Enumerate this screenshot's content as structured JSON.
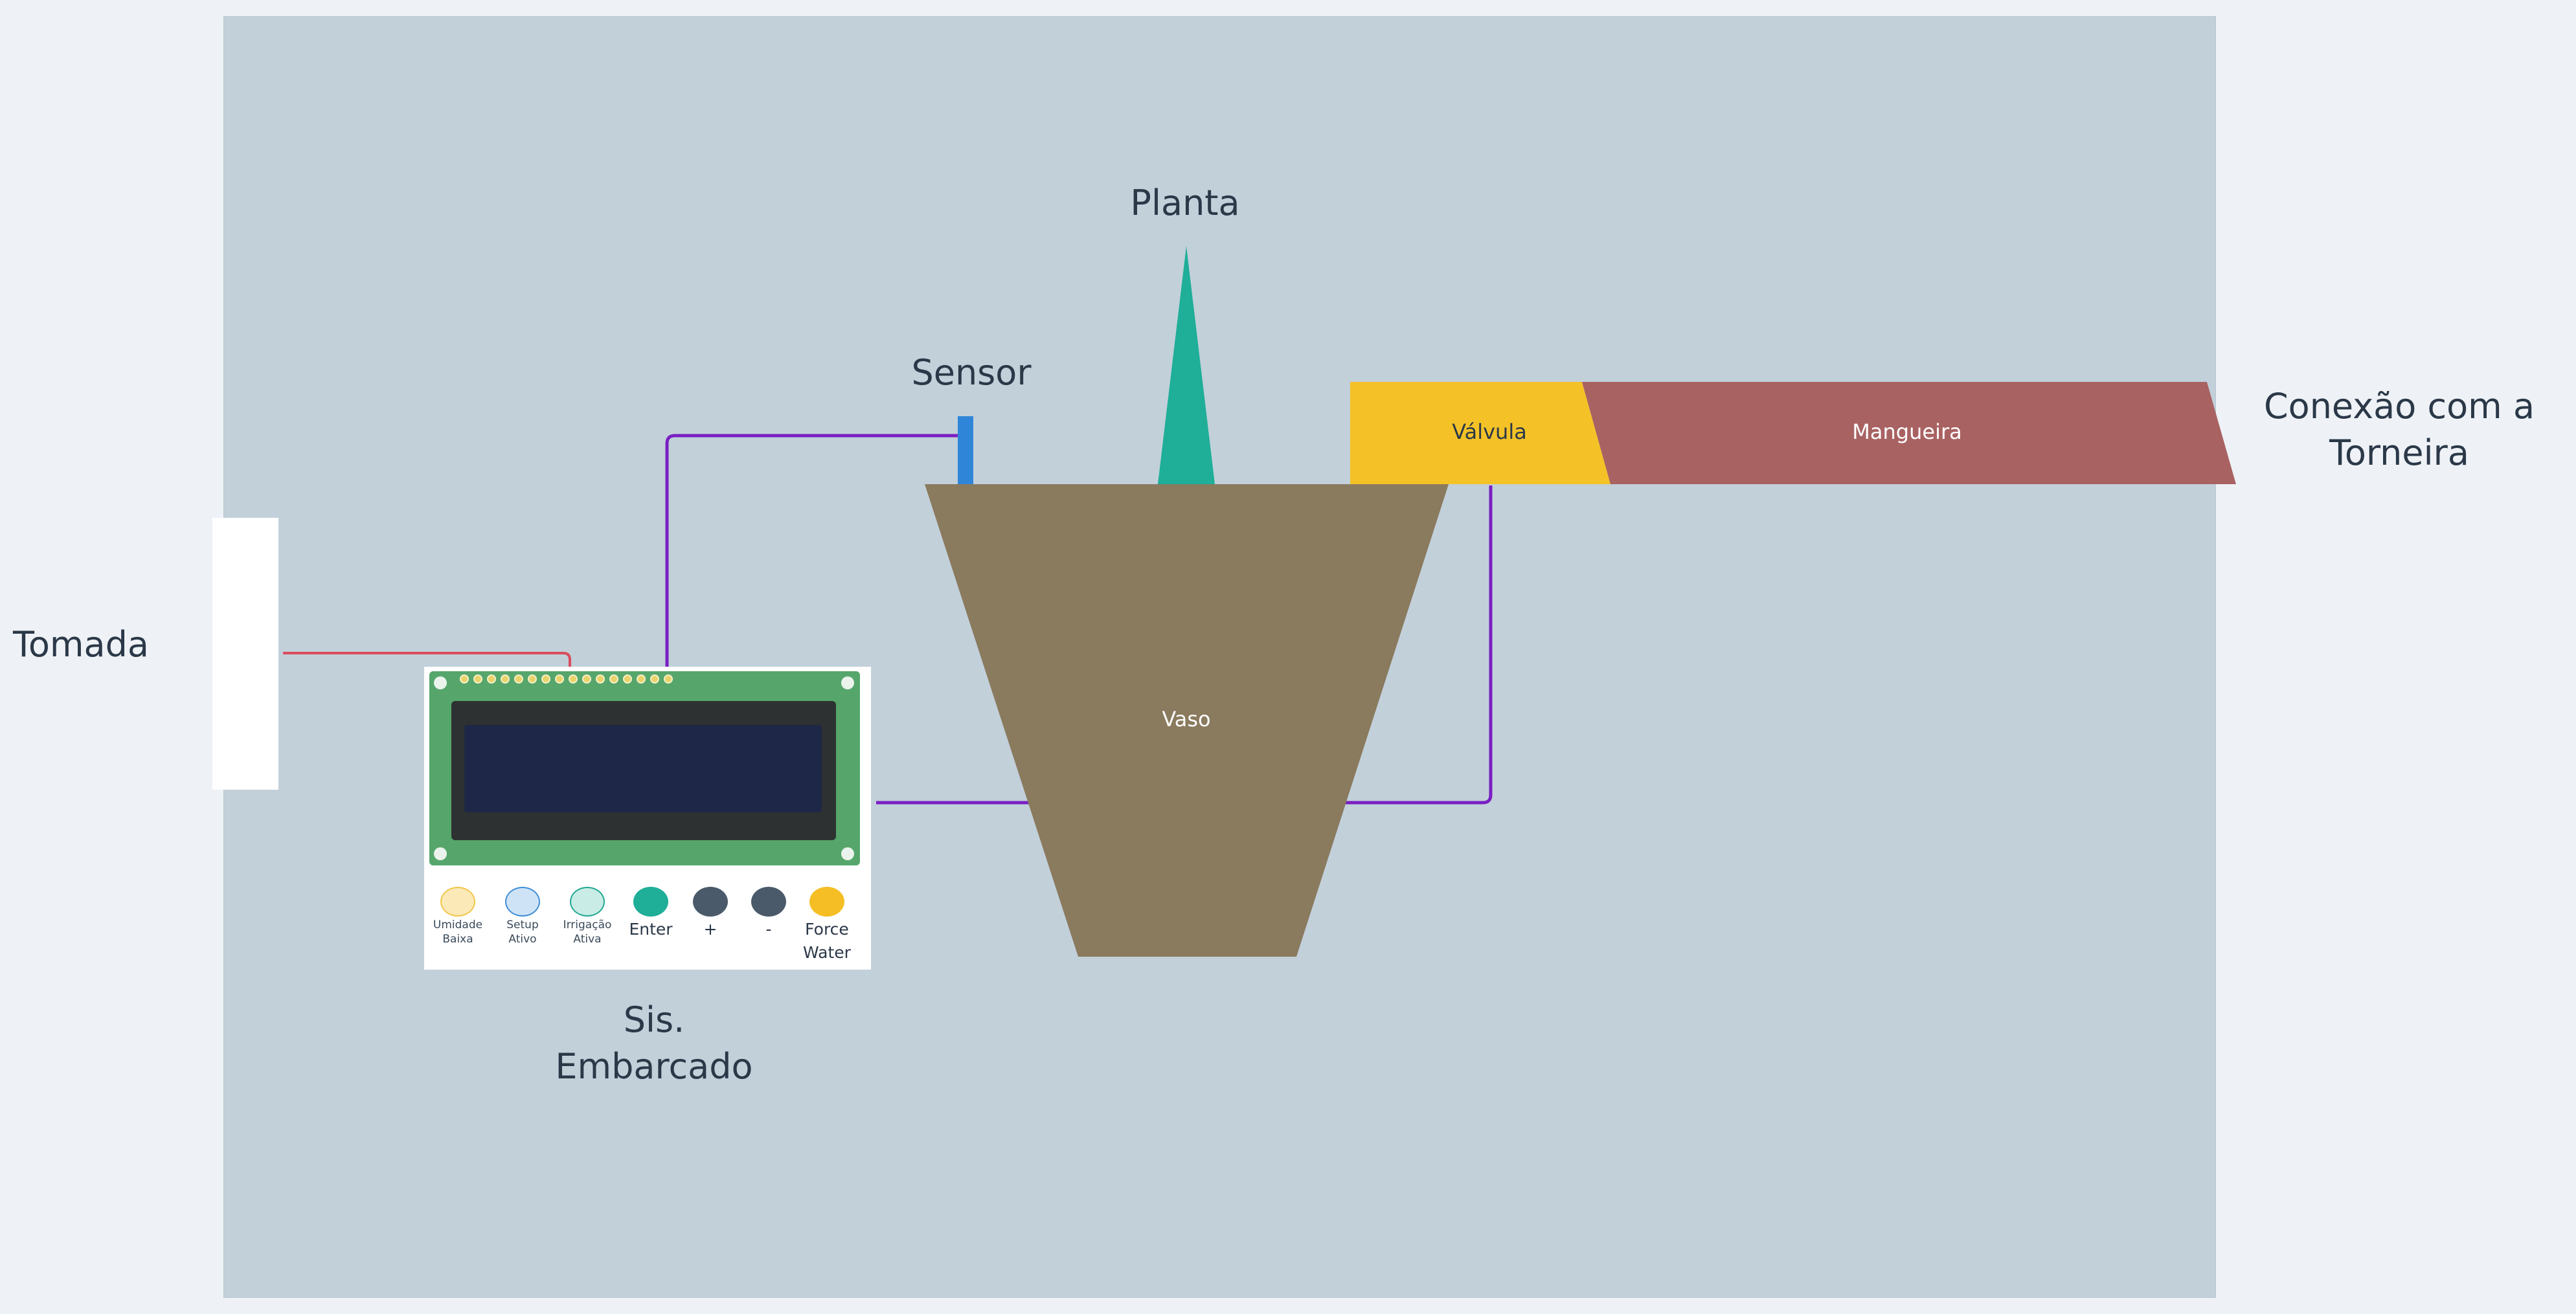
{
  "labels": {
    "tomada": "Tomada",
    "sensor": "Sensor",
    "planta": "Planta",
    "conexao_line1": "Conexão com a",
    "conexao_line2": "Torneira",
    "sis_line1": "Sis.",
    "sis_line2": "Embarcado",
    "valvula": "Válvula",
    "mangueira": "Mangueira",
    "vaso": "Vaso"
  },
  "board": {
    "leds": [
      {
        "line1": "Umidade",
        "line2": "Baixa",
        "color": "#fbe9b8",
        "border": "#f3c64a"
      },
      {
        "line1": "Setup",
        "line2": "Ativo",
        "color": "#cfe3f7",
        "border": "#3f8fd6"
      },
      {
        "line1": "Irrigação",
        "line2": "Ativa",
        "color": "#c9ece6",
        "border": "#22a893"
      }
    ],
    "buttons": [
      {
        "line1": "Enter",
        "line2": "",
        "color": "#1fae98"
      },
      {
        "line1": "+",
        "line2": "",
        "color": "#4b5a6a"
      },
      {
        "line1": "-",
        "line2": "",
        "color": "#4b5a6a"
      },
      {
        "line1": "Force",
        "line2": "Water",
        "color": "#f4be24"
      }
    ]
  },
  "colors": {
    "background": "#eef2f6",
    "panel": "#c2d0da",
    "vaso": "#8a7a5e",
    "planta": "#1fae98",
    "valvula": "#f4c227",
    "mangueira": "#a96262",
    "sensor": "#2f86d8",
    "wire_power": "#d94d5c",
    "wire_signal": "#7a1fc2"
  }
}
